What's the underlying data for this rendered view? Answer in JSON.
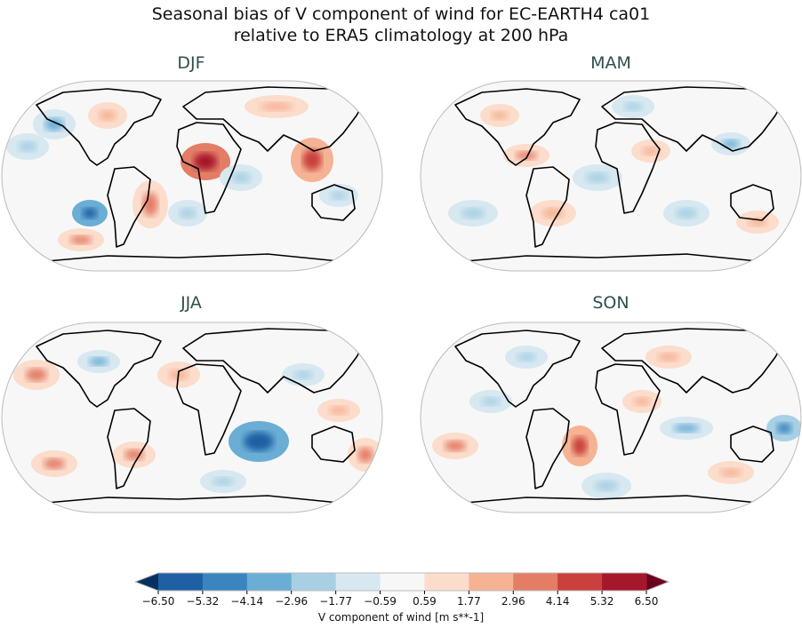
{
  "title": {
    "line1": "Seasonal bias of V component of wind for EC-EARTH4 ca01",
    "line2": "relative to ERA5 climatology at 200 hPa"
  },
  "panels": [
    {
      "label": "DJF"
    },
    {
      "label": "MAM"
    },
    {
      "label": "JJA"
    },
    {
      "label": "SON"
    }
  ],
  "colorbar": {
    "label": "V component of wind [m s**-1]",
    "ticks": [
      "−6.50",
      "−5.32",
      "−4.14",
      "−2.96",
      "−1.77",
      "−0.59",
      "0.59",
      "1.77",
      "2.96",
      "4.14",
      "5.32",
      "6.50"
    ],
    "colors": [
      "#1f5fa3",
      "#3a85c0",
      "#6aaed5",
      "#a8d0e4",
      "#d7e8f1",
      "#f7f7f7",
      "#fcdccb",
      "#f5b394",
      "#e47d66",
      "#c9403d",
      "#a5172b"
    ],
    "under_color": "#08305f",
    "over_color": "#6a0020",
    "extend": "both"
  }
}
